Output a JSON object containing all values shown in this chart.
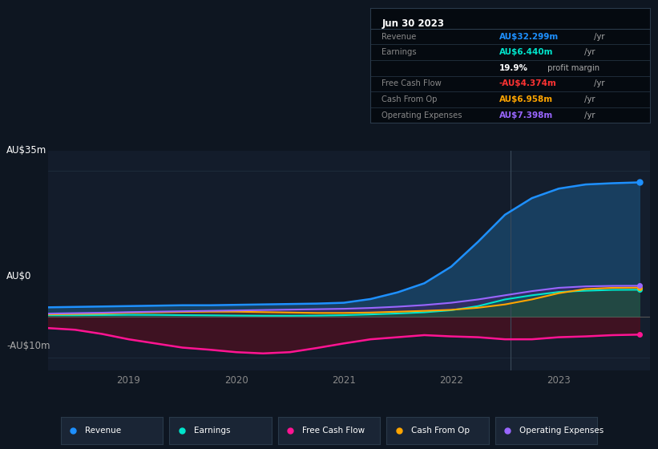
{
  "bg_color": "#0e1621",
  "ax_bg": "#131c2b",
  "grid_color": "#1e2d3d",
  "title_text": "Jun 30 2023",
  "ylabel_top": "AU$35m",
  "ylabel_zero": "AU$0",
  "ylabel_neg": "-AU$10m",
  "ylim": [
    -13,
    40
  ],
  "xlim_start": 2018.25,
  "xlim_end": 2023.85,
  "xticks": [
    2019,
    2020,
    2021,
    2022,
    2023
  ],
  "vline_x": 2022.55,
  "series": {
    "x": [
      2018.25,
      2018.5,
      2018.75,
      2019.0,
      2019.25,
      2019.5,
      2019.75,
      2020.0,
      2020.25,
      2020.5,
      2020.75,
      2021.0,
      2021.25,
      2021.5,
      2021.75,
      2022.0,
      2022.25,
      2022.5,
      2022.75,
      2023.0,
      2023.25,
      2023.5,
      2023.75
    ],
    "revenue": [
      2.2,
      2.3,
      2.4,
      2.5,
      2.6,
      2.7,
      2.7,
      2.8,
      2.9,
      3.0,
      3.1,
      3.3,
      4.2,
      5.8,
      8.0,
      12.0,
      18.0,
      24.5,
      28.5,
      30.8,
      31.8,
      32.1,
      32.3
    ],
    "earnings": [
      0.3,
      0.3,
      0.35,
      0.4,
      0.38,
      0.32,
      0.28,
      0.22,
      0.18,
      0.18,
      0.22,
      0.32,
      0.5,
      0.72,
      1.0,
      1.5,
      2.5,
      4.1,
      5.1,
      5.9,
      6.2,
      6.4,
      6.44
    ],
    "free_cash": [
      -2.8,
      -3.2,
      -4.2,
      -5.5,
      -6.5,
      -7.5,
      -8.0,
      -8.6,
      -8.9,
      -8.6,
      -7.6,
      -6.5,
      -5.5,
      -5.0,
      -4.5,
      -4.8,
      -5.0,
      -5.5,
      -5.5,
      -5.0,
      -4.8,
      -4.5,
      -4.374
    ],
    "cash_from_op": [
      0.5,
      0.6,
      0.7,
      0.9,
      1.0,
      1.1,
      1.15,
      1.15,
      1.05,
      0.95,
      0.85,
      0.85,
      0.95,
      1.15,
      1.35,
      1.6,
      2.1,
      2.9,
      4.1,
      5.6,
      6.6,
      6.9,
      6.958
    ],
    "op_expenses": [
      0.7,
      0.8,
      0.9,
      1.05,
      1.15,
      1.25,
      1.35,
      1.45,
      1.55,
      1.65,
      1.75,
      1.85,
      2.05,
      2.35,
      2.75,
      3.3,
      4.1,
      5.1,
      6.1,
      6.9,
      7.25,
      7.37,
      7.398
    ]
  },
  "colors": {
    "revenue": "#1e90ff",
    "earnings": "#00e5cc",
    "free_cash": "#ff1493",
    "cash_from_op": "#ffa500",
    "op_expenses": "#9966ff"
  },
  "fill_revenue": "#1a4a70",
  "fill_negative": "#4a1020",
  "fill_earnings": "#006655",
  "fill_op_exp": "#442266",
  "fill_cash_op": "#553300",
  "legend": [
    {
      "label": "Revenue",
      "color": "#1e90ff"
    },
    {
      "label": "Earnings",
      "color": "#00e5cc"
    },
    {
      "label": "Free Cash Flow",
      "color": "#ff1493"
    },
    {
      "label": "Cash From Op",
      "color": "#ffa500"
    },
    {
      "label": "Operating Expenses",
      "color": "#9966ff"
    }
  ],
  "info_rows": [
    {
      "label": "Revenue",
      "val": "AU$32.299m",
      "rest": " /yr",
      "col": "#1e90ff"
    },
    {
      "label": "Earnings",
      "val": "AU$6.440m",
      "rest": " /yr",
      "col": "#00e5cc"
    },
    {
      "label": "",
      "val": "19.9%",
      "rest": " profit margin",
      "col": "#ffffff"
    },
    {
      "label": "Free Cash Flow",
      "val": "-AU$4.374m",
      "rest": " /yr",
      "col": "#ff3333"
    },
    {
      "label": "Cash From Op",
      "val": "AU$6.958m",
      "rest": " /yr",
      "col": "#ffa500"
    },
    {
      "label": "Operating Expenses",
      "val": "AU$7.398m",
      "rest": " /yr",
      "col": "#9966ff"
    }
  ]
}
